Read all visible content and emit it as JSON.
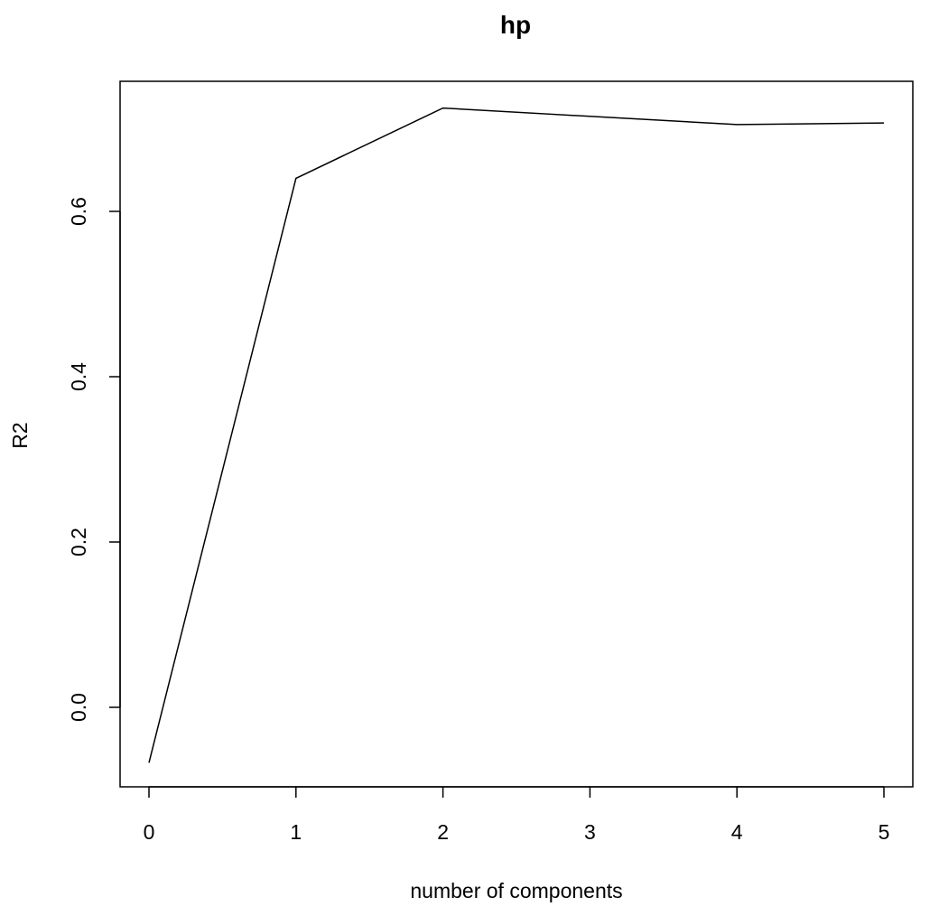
{
  "chart_data": {
    "type": "line",
    "title": "hp",
    "xlabel": "number of components",
    "ylabel": "R2",
    "x": [
      0,
      1,
      2,
      3,
      4,
      5
    ],
    "series": [
      {
        "values": [
          -0.067,
          0.64,
          0.725,
          0.715,
          0.705,
          0.707
        ],
        "color": "#000000"
      }
    ],
    "xlim": [
      -0.2,
      5.2
    ],
    "ylim": [
      -0.1,
      0.75
    ],
    "xticks": [
      0,
      1,
      2,
      3,
      4,
      5
    ],
    "xtick_labels": [
      "0",
      "1",
      "2",
      "3",
      "4",
      "5"
    ],
    "yticks": [
      0.0,
      0.2,
      0.4,
      0.6
    ],
    "ytick_labels": [
      "0.0",
      "0.2",
      "0.4",
      "0.6"
    ],
    "grid": false,
    "legend": "none"
  }
}
